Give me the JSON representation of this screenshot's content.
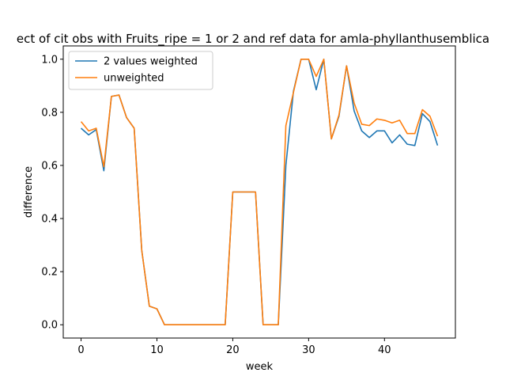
{
  "chart_data": {
    "type": "line",
    "title": "ect of cit obs with Fruits_ripe = 1 or 2 and ref data for amla-phyllanthusemblica",
    "xlabel": "week",
    "ylabel": "difference",
    "xlim": [
      -2.35,
      49.35
    ],
    "ylim": [
      -0.05,
      1.05
    ],
    "x_ticks": [
      0,
      10,
      20,
      30,
      40
    ],
    "y_ticks": [
      0.0,
      0.2,
      0.4,
      0.6,
      0.8,
      1.0
    ],
    "x_tick_labels": [
      "0",
      "10",
      "20",
      "30",
      "40"
    ],
    "y_tick_labels": [
      "0.0",
      "0.2",
      "0.4",
      "0.6",
      "0.8",
      "1.0"
    ],
    "grid": false,
    "legend_position": "top-left",
    "x": [
      0,
      1,
      2,
      3,
      4,
      5,
      6,
      7,
      8,
      9,
      10,
      11,
      12,
      13,
      14,
      15,
      16,
      17,
      18,
      19,
      20,
      21,
      22,
      23,
      24,
      25,
      26,
      27,
      28,
      29,
      30,
      31,
      32,
      33,
      34,
      35,
      36,
      37,
      38,
      39,
      40,
      41,
      42,
      43,
      44,
      45,
      46,
      47
    ],
    "series": [
      {
        "name": "2 values weighted",
        "color": "#1f77b4",
        "values": [
          0.74,
          0.715,
          0.735,
          0.58,
          0.86,
          0.865,
          0.78,
          0.74,
          0.28,
          0.07,
          0.06,
          0.0,
          0.0,
          0.0,
          0.0,
          0.0,
          0.0,
          0.0,
          0.0,
          0.0,
          0.5,
          0.5,
          0.5,
          0.5,
          0.0,
          0.0,
          0.0,
          0.6,
          0.88,
          1.0,
          1.0,
          0.885,
          1.0,
          0.7,
          0.785,
          0.975,
          0.805,
          0.73,
          0.705,
          0.73,
          0.73,
          0.685,
          0.715,
          0.68,
          0.675,
          0.795,
          0.765,
          0.675
        ]
      },
      {
        "name": "unweighted",
        "color": "#ff7f0e",
        "values": [
          0.765,
          0.73,
          0.74,
          0.595,
          0.86,
          0.865,
          0.78,
          0.74,
          0.28,
          0.07,
          0.06,
          0.0,
          0.0,
          0.0,
          0.0,
          0.0,
          0.0,
          0.0,
          0.0,
          0.0,
          0.5,
          0.5,
          0.5,
          0.5,
          0.0,
          0.0,
          0.0,
          0.75,
          0.875,
          1.0,
          1.0,
          0.935,
          1.0,
          0.7,
          0.79,
          0.975,
          0.835,
          0.755,
          0.75,
          0.775,
          0.77,
          0.76,
          0.77,
          0.72,
          0.72,
          0.81,
          0.785,
          0.71
        ]
      }
    ]
  }
}
